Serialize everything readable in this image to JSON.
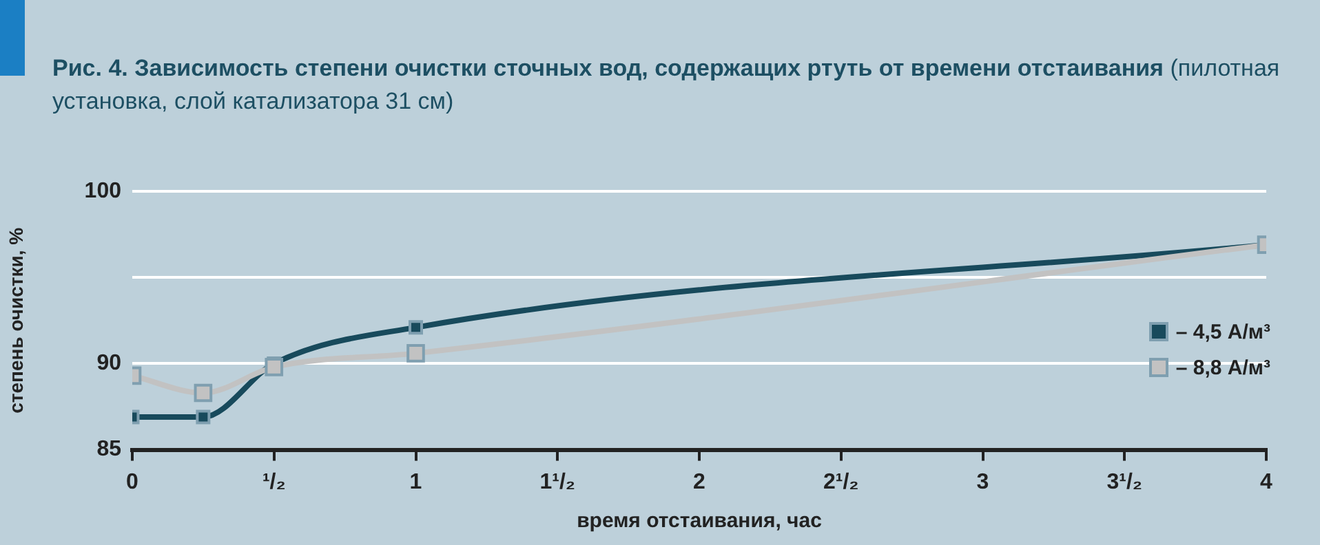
{
  "chart_data": {
    "type": "line",
    "title": "Рис. 4. Зависимость степени очистки сточных вод, содержащих ртуть от времени отстаивания",
    "subtitle": "(пилотная установка, слой катализатора 31 см)",
    "xlabel": "время отстаивания, час",
    "ylabel": "степень очистки, %",
    "x": [
      0,
      0.25,
      0.5,
      1,
      4
    ],
    "series": [
      {
        "name": "– 8,8 А/м³",
        "color": "#c2c2c2",
        "values": [
          89.3,
          88.3,
          89.8,
          90.6,
          96.9
        ]
      },
      {
        "name": "– 4,5 А/м³",
        "color": "#184a5c",
        "values": [
          86.9,
          86.9,
          90,
          92.1,
          96.9
        ]
      }
    ],
    "xlim": [
      0,
      4
    ],
    "xticks": [
      0,
      {
        "value": 0.5,
        "label": "¹/₂"
      },
      1,
      {
        "value": 1.5,
        "label": "1¹/₂"
      },
      2,
      {
        "value": 2.5,
        "label": "2¹/₂"
      },
      3,
      {
        "value": 3.5,
        "label": "3¹/₂"
      },
      4
    ],
    "ylim": [
      85,
      100
    ],
    "yticks": [
      85,
      90,
      {
        "value": 95,
        "label": null
      },
      100
    ],
    "grid": "y",
    "legend": "bottom right",
    "marker": "square",
    "line_style": "solid"
  }
}
